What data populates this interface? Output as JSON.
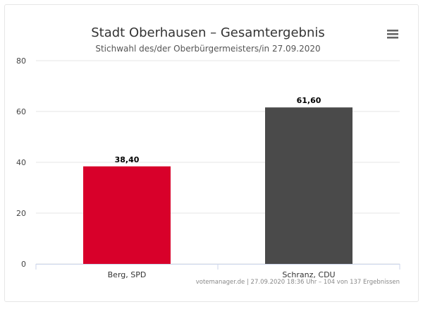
{
  "chart_data": {
    "type": "bar",
    "title": "Stadt Oberhausen – Gesamtergebnis",
    "subtitle": "Stichwahl des/der Oberbürgermeisters/in 27.09.2020",
    "categories": [
      "Berg, SPD",
      "Schranz, CDU"
    ],
    "values": [
      38.4,
      61.6
    ],
    "data_labels": [
      "38,40",
      "61,60"
    ],
    "colors": [
      "#d8002a",
      "#4a4a4a"
    ],
    "ylim": [
      0,
      80
    ],
    "yticks": [
      0,
      20,
      40,
      60,
      80
    ],
    "grid": true,
    "legend": "none"
  },
  "credits": "votemanager.de | 27.09.2020 18:36 Uhr – 104 von 137 Ergebnissen",
  "menu_icon": "hamburger-menu-icon"
}
